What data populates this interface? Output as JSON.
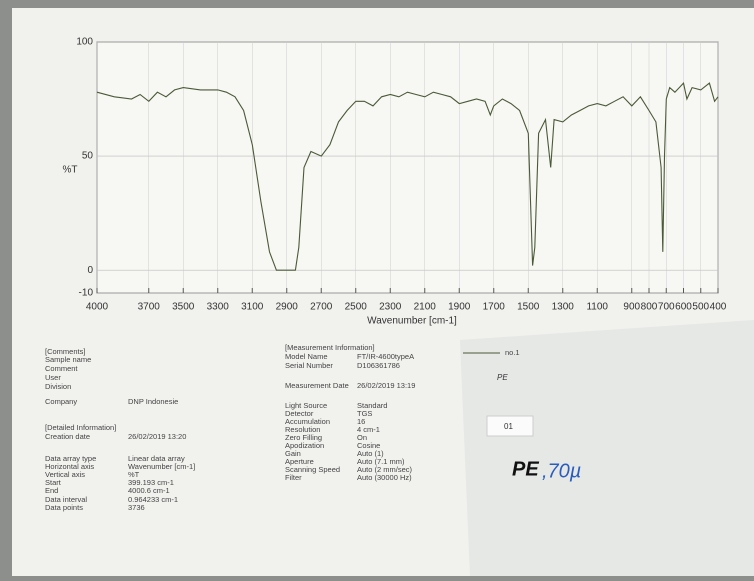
{
  "chart_data": {
    "type": "line",
    "y_label": "%T",
    "x_label": "Wavenumber [cm-1]",
    "xlim": [
      4000,
      400
    ],
    "ylim": [
      -10,
      100
    ],
    "xticks": [
      4000,
      3700,
      3500,
      3300,
      3100,
      2900,
      2700,
      2500,
      2300,
      2100,
      1900,
      1700,
      1500,
      1300,
      1100,
      900,
      800,
      700,
      600,
      500,
      400
    ],
    "yticks": [
      -10,
      0,
      50,
      100
    ],
    "grid": true,
    "x": [
      4000,
      3900,
      3800,
      3750,
      3700,
      3650,
      3600,
      3550,
      3500,
      3400,
      3300,
      3250,
      3200,
      3150,
      3100,
      3050,
      3000,
      2960,
      2920,
      2880,
      2850,
      2830,
      2800,
      2760,
      2700,
      2650,
      2600,
      2550,
      2500,
      2450,
      2400,
      2350,
      2300,
      2250,
      2200,
      2150,
      2100,
      2050,
      2000,
      1950,
      1900,
      1850,
      1800,
      1750,
      1720,
      1700,
      1650,
      1600,
      1550,
      1500,
      1475,
      1462,
      1440,
      1400,
      1370,
      1350,
      1300,
      1250,
      1200,
      1150,
      1100,
      1050,
      1000,
      950,
      900,
      850,
      800,
      760,
      730,
      720,
      710,
      700,
      680,
      650,
      600,
      580,
      550,
      500,
      450,
      420,
      400
    ],
    "series": [
      {
        "name": "no.1",
        "color": "#4a5a36",
        "values": [
          78,
          76,
          75,
          77,
          74,
          78,
          76,
          79,
          80,
          79,
          79,
          78,
          76,
          70,
          55,
          30,
          8,
          0,
          0,
          0,
          0,
          10,
          45,
          52,
          50,
          55,
          65,
          70,
          74,
          74,
          72,
          76,
          77,
          76,
          78,
          77,
          76,
          78,
          77,
          76,
          73,
          74,
          75,
          74,
          68,
          72,
          75,
          73,
          70,
          60,
          2,
          10,
          60,
          66,
          45,
          66,
          65,
          68,
          70,
          72,
          73,
          72,
          74,
          76,
          72,
          76,
          70,
          65,
          45,
          8,
          50,
          75,
          80,
          78,
          82,
          75,
          80,
          79,
          82,
          74,
          76
        ]
      }
    ]
  },
  "left_info": [
    {
      "label": "[Comments]"
    },
    {
      "label": "Sample name"
    },
    {
      "label": "Comment"
    },
    {
      "label": "User"
    },
    {
      "label": "Division"
    },
    {
      "label": "Company",
      "value": "DNP Indonesie"
    },
    {
      "label": "[Detailed Information]"
    },
    {
      "label": "Creation date",
      "value": "26/02/2019 13:20"
    },
    {
      "label": "Data array type",
      "value": "Linear data array"
    },
    {
      "label": "Horizontal axis",
      "value": "Wavenumber [cm-1]"
    },
    {
      "label": "Vertical axis",
      "value": "%T"
    },
    {
      "label": "Start",
      "value": "399.193 cm-1"
    },
    {
      "label": "End",
      "value": "4000.6 cm-1"
    },
    {
      "label": "Data interval",
      "value": "0.964233 cm-1"
    },
    {
      "label": "Data points",
      "value": "3736"
    }
  ],
  "measurement_info": [
    {
      "label": "[Measurement Information]"
    },
    {
      "label": "Model Name",
      "value": "FT/IR-4600typeA"
    },
    {
      "label": "Serial Number",
      "value": "D106361786"
    },
    {
      "label": "Measurement Date",
      "value": "26/02/2019 13:19"
    },
    {
      "label": "Light Source",
      "value": "Standard"
    },
    {
      "label": "Detector",
      "value": "TGS"
    },
    {
      "label": "Accumulation",
      "value": "16"
    },
    {
      "label": "Resolution",
      "value": "4 cm-1"
    },
    {
      "label": "Zero Filling",
      "value": "On"
    },
    {
      "label": "Apodization",
      "value": "Cosine"
    },
    {
      "label": "Gain",
      "value": "Auto (1)"
    },
    {
      "label": "Aperture",
      "value": "Auto (7.1 mm)"
    },
    {
      "label": "Scanning Speed",
      "value": "Auto (2 mm/sec)"
    },
    {
      "label": "Filter",
      "value": "Auto (30000 Hz)"
    }
  ],
  "handwriting": {
    "small_note": "PE",
    "sticker": "01",
    "note_black": "PE",
    "note_blue": ",70µ"
  }
}
